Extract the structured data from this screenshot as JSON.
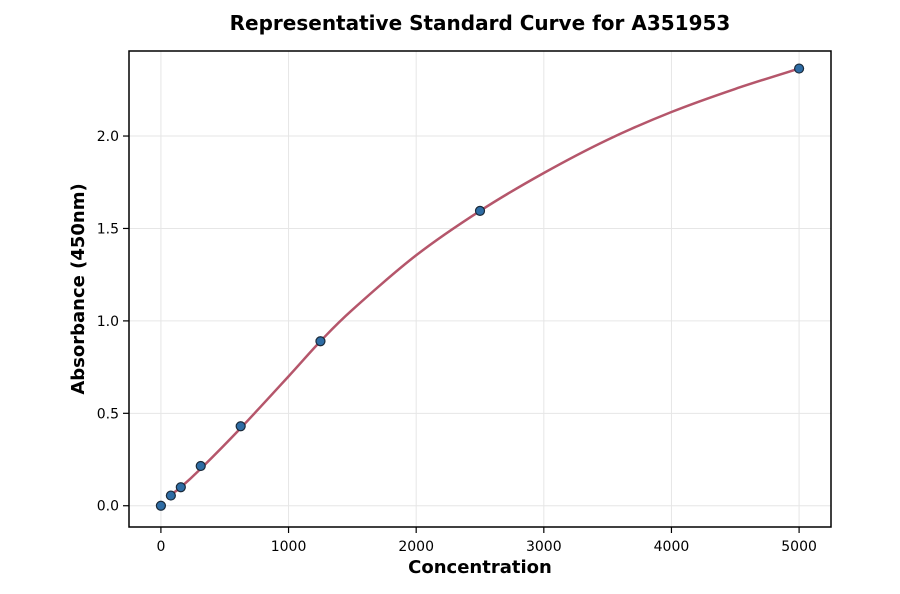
{
  "chart_data": {
    "type": "scatter",
    "title": "Representative Standard Curve for A351953",
    "xlabel": "Concentration",
    "ylabel": "Absorbance (450nm)",
    "xlim": [
      -250,
      5250
    ],
    "ylim": [
      -0.115,
      2.46
    ],
    "xticks": [
      0,
      1000,
      2000,
      3000,
      4000,
      5000
    ],
    "yticks": [
      0.0,
      0.5,
      1.0,
      1.5,
      2.0
    ],
    "ytick_labels": [
      "0.0",
      "0.5",
      "1.0",
      "1.5",
      "2.0"
    ],
    "grid": true,
    "series": [
      {
        "kind": "points",
        "x": [
          0,
          78,
          156,
          312,
          625,
          1250,
          2500,
          5000
        ],
        "y": [
          0.0,
          0.055,
          0.1,
          0.215,
          0.43,
          0.89,
          1.595,
          2.365
        ]
      },
      {
        "kind": "fit-curve",
        "x": [
          78,
          156,
          312,
          625,
          1000,
          1250,
          1500,
          2000,
          2500,
          3000,
          3500,
          4000,
          4500,
          5000
        ],
        "y": [
          0.06,
          0.1,
          0.2,
          0.42,
          0.7,
          0.89,
          1.06,
          1.355,
          1.595,
          1.8,
          1.98,
          2.13,
          2.255,
          2.365
        ]
      }
    ],
    "colors": {
      "points": "#2e6ca4",
      "point_edge": "#1a2a3a",
      "curve": "#b5566b"
    }
  }
}
